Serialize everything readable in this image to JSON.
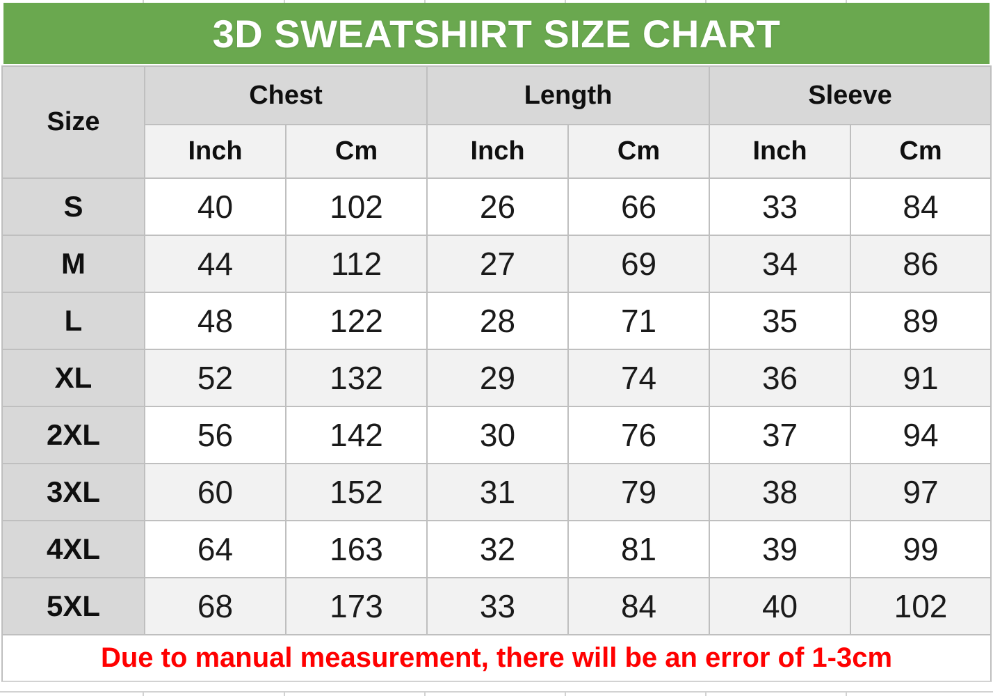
{
  "title": "3D SWEATSHIRT SIZE CHART",
  "note": "Due to manual measurement, there will be an error of 1-3cm",
  "table": {
    "size_header": "Size",
    "groups": [
      {
        "label": "Chest"
      },
      {
        "label": "Length"
      },
      {
        "label": "Sleeve"
      }
    ],
    "unit_headers": [
      "Inch",
      "Cm",
      "Inch",
      "Cm",
      "Inch",
      "Cm"
    ],
    "rows": [
      {
        "size": "S",
        "values": [
          "40",
          "102",
          "26",
          "66",
          "33",
          "84"
        ]
      },
      {
        "size": "M",
        "values": [
          "44",
          "112",
          "27",
          "69",
          "34",
          "86"
        ]
      },
      {
        "size": "L",
        "values": [
          "48",
          "122",
          "28",
          "71",
          "35",
          "89"
        ]
      },
      {
        "size": "XL",
        "values": [
          "52",
          "132",
          "29",
          "74",
          "36",
          "91"
        ]
      },
      {
        "size": "2XL",
        "values": [
          "56",
          "142",
          "30",
          "76",
          "37",
          "94"
        ]
      },
      {
        "size": "3XL",
        "values": [
          "60",
          "152",
          "31",
          "79",
          "38",
          "97"
        ]
      },
      {
        "size": "4XL",
        "values": [
          "64",
          "163",
          "32",
          "81",
          "39",
          "99"
        ]
      },
      {
        "size": "5XL",
        "values": [
          "68",
          "173",
          "33",
          "84",
          "40",
          "102"
        ]
      }
    ]
  },
  "colors": {
    "title_bar_green": "#6aa84f",
    "title_text": "#ffffff",
    "group_header_gray": "#d8d8d8",
    "unit_header_gray": "#f2f2f2",
    "row_white": "#ffffff",
    "row_alt_gray": "#f2f2f2",
    "grid_border": "#bfbfbf",
    "note_red": "#ff0000"
  },
  "chart_data": {
    "type": "table",
    "title": "3D SWEATSHIRT SIZE CHART",
    "column_groups": [
      "Chest",
      "Length",
      "Sleeve"
    ],
    "columns": [
      "Size",
      "Chest Inch",
      "Chest Cm",
      "Length Inch",
      "Length Cm",
      "Sleeve Inch",
      "Sleeve Cm"
    ],
    "rows": [
      [
        "S",
        40,
        102,
        26,
        66,
        33,
        84
      ],
      [
        "M",
        44,
        112,
        27,
        69,
        34,
        86
      ],
      [
        "L",
        48,
        122,
        28,
        71,
        35,
        89
      ],
      [
        "XL",
        52,
        132,
        29,
        74,
        36,
        91
      ],
      [
        "2XL",
        56,
        142,
        30,
        76,
        37,
        94
      ],
      [
        "3XL",
        60,
        152,
        31,
        79,
        38,
        97
      ],
      [
        "4XL",
        64,
        163,
        32,
        81,
        39,
        99
      ],
      [
        "5XL",
        68,
        173,
        33,
        84,
        40,
        102
      ]
    ],
    "note": "Due to manual measurement, there will be an error of 1-3cm",
    "layout": {
      "grid": true,
      "alternating_rows": true,
      "header_span_rows": 2
    }
  }
}
